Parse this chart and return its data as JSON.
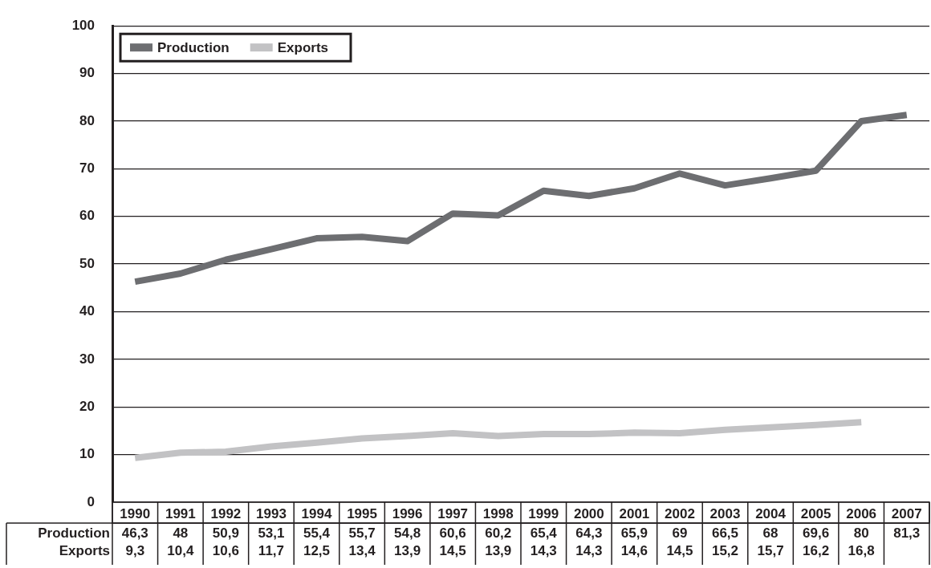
{
  "chart_data": {
    "type": "line",
    "categories": [
      "1990",
      "1991",
      "1992",
      "1993",
      "1994",
      "1995",
      "1996",
      "1997",
      "1998",
      "1999",
      "2000",
      "2001",
      "2002",
      "2003",
      "2004",
      "2005",
      "2006",
      "2007"
    ],
    "series": [
      {
        "name": "Production",
        "color": "#6d6e71",
        "values": [
          46.3,
          48,
          50.9,
          53.1,
          55.4,
          55.7,
          54.8,
          60.6,
          60.2,
          65.4,
          64.3,
          65.9,
          69,
          66.5,
          68,
          69.6,
          80,
          81.3
        ],
        "value_labels": [
          "46,3",
          "48",
          "50,9",
          "53,1",
          "55,4",
          "55,7",
          "54,8",
          "60,6",
          "60,2",
          "65,4",
          "64,3",
          "65,9",
          "69",
          "66,5",
          "68",
          "69,6",
          "80",
          "81,3"
        ]
      },
      {
        "name": "Exports",
        "color": "#c2c2c4",
        "values": [
          9.3,
          10.4,
          10.6,
          11.7,
          12.5,
          13.4,
          13.9,
          14.5,
          13.9,
          14.3,
          14.3,
          14.6,
          14.5,
          15.2,
          15.7,
          16.2,
          16.8,
          null
        ],
        "value_labels": [
          "9,3",
          "10,4",
          "10,6",
          "11,7",
          "12,5",
          "13,4",
          "13,9",
          "14,5",
          "13,9",
          "14,3",
          "14,3",
          "14,6",
          "14,5",
          "15,2",
          "15,7",
          "16,2",
          "16,8",
          null
        ]
      }
    ],
    "ylim": [
      0,
      100
    ],
    "yticks": [
      0,
      10,
      20,
      30,
      40,
      50,
      60,
      70,
      80,
      90,
      100
    ],
    "grid": "y",
    "legend": "top left",
    "marker": "none",
    "line_style": "solid"
  }
}
